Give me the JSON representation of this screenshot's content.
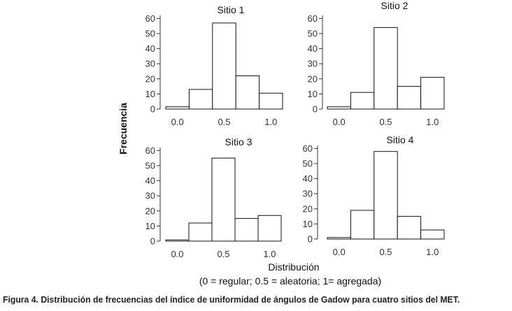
{
  "figure": {
    "y_axis_label": "Frecuencia",
    "x_axis_label": "Distribución",
    "x_axis_sublabel": "(0 = regular; 0.5 = aleatoria; 1= agregada)",
    "caption": "Figura 4. Distribución de frecuencias del índice de uniformidad de ángulos de Gadow para cuatro sitios del MET."
  },
  "chart_data": [
    {
      "type": "bar",
      "title": "Sitio 1",
      "categories": [
        "0.0",
        "0.25",
        "0.5",
        "0.75",
        "1.0"
      ],
      "values": [
        1.5,
        13,
        57,
        22,
        10.5
      ],
      "xticks": [
        "0.0",
        "0.5",
        "1.0"
      ],
      "yticks": [
        0,
        10,
        20,
        30,
        40,
        50,
        60
      ],
      "ylim": [
        0,
        62
      ],
      "xlabel": "Distribución",
      "ylabel": "Frecuencia"
    },
    {
      "type": "bar",
      "title": "Sitio 2",
      "categories": [
        "0.0",
        "0.25",
        "0.5",
        "0.75",
        "1.0"
      ],
      "values": [
        1.5,
        11,
        54,
        15,
        21
      ],
      "xticks": [
        "0.0",
        "0.5",
        "1.0"
      ],
      "yticks": [
        0,
        10,
        20,
        30,
        40,
        50,
        60
      ],
      "ylim": [
        0,
        62
      ],
      "xlabel": "Distribución",
      "ylabel": "Frecuencia"
    },
    {
      "type": "bar",
      "title": "Sitio 3",
      "categories": [
        "0.0",
        "0.25",
        "0.5",
        "0.75",
        "1.0"
      ],
      "values": [
        0.8,
        12,
        55,
        15,
        17
      ],
      "xticks": [
        "0.0",
        "0.5",
        "1.0"
      ],
      "yticks": [
        0,
        10,
        20,
        30,
        40,
        50,
        60
      ],
      "ylim": [
        0,
        62
      ],
      "xlabel": "Distribución",
      "ylabel": "Frecuencia"
    },
    {
      "type": "bar",
      "title": "Sitio 4",
      "categories": [
        "0.0",
        "0.25",
        "0.5",
        "0.75",
        "1.0"
      ],
      "values": [
        1,
        19,
        58,
        15,
        6
      ],
      "xticks": [
        "0.0",
        "0.5",
        "1.0"
      ],
      "yticks": [
        0,
        10,
        20,
        30,
        40,
        50,
        60
      ],
      "ylim": [
        0,
        62
      ],
      "xlabel": "Distribución",
      "ylabel": "Frecuencia"
    }
  ]
}
